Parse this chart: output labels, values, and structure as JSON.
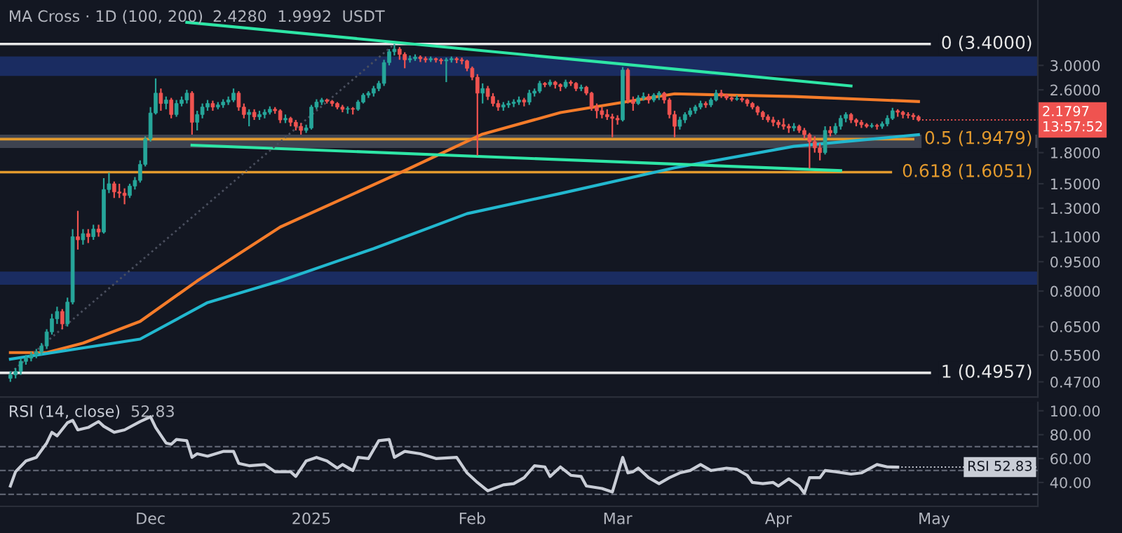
{
  "chart_data": [
    {
      "type": "candlestick",
      "log": true,
      "tick_labels": "y",
      "annotations": [
        "MA Cross · 1D (100, 200)",
        "2.4280",
        "1.9992",
        "USDT",
        {
          "text": "2.1797\n13:57:52",
          "x": "2025-04-28",
          "y": 2.1797
        }
      ],
      "xlim": [
        "2024-11-02",
        "2025-05-21"
      ],
      "ylim": [
        0.43,
        4.4
      ],
      "yticks": [
        {
          "value": 3,
          "label": "3.0000"
        },
        {
          "value": 2.6,
          "label": "2.6000"
        },
        {
          "value": 1.8,
          "label": "1.8000"
        },
        {
          "value": 1.5,
          "label": "1.5000"
        },
        {
          "value": 1.3,
          "label": "1.3000"
        },
        {
          "value": 1.1,
          "label": "1.1000"
        },
        {
          "value": 0.95,
          "label": "0.9500"
        },
        {
          "value": 0.8,
          "label": "0.8000"
        },
        {
          "value": 0.65,
          "label": "0.6500"
        },
        {
          "value": 0.55,
          "label": "0.5500"
        },
        {
          "value": 0.47,
          "label": "0.4700"
        }
      ],
      "bands": [
        {
          "axis": "y",
          "from": 2.82,
          "to": 3.16,
          "color": "#1f3a8c"
        },
        {
          "axis": "y",
          "from": 0.83,
          "to": 0.897,
          "color": "#1f3a8c"
        },
        {
          "axis": "y",
          "from": 1.85,
          "to": 2.0,
          "color": "#5b6170"
        }
      ],
      "ref_lines": [
        {
          "axis": "y",
          "value": 3.4,
          "label": "0 (3.4000)",
          "color": "#e8e8e8"
        },
        {
          "axis": "y",
          "value": 1.9479,
          "label": "0.5 (1.9479)",
          "color": "#e39a2d"
        },
        {
          "axis": "y",
          "value": 1.6051,
          "label": "0.618 (1.6051)",
          "color": "#e39a2d"
        },
        {
          "axis": "y",
          "value": 0.4957,
          "label": "1 (0.4957)",
          "color": "#e8e8e8"
        }
      ],
      "x": [
        "2024-11-04",
        "2024-11-05",
        "2024-11-06",
        "2024-11-07",
        "2024-11-08",
        "2024-11-09",
        "2024-11-10",
        "2024-11-11",
        "2024-11-12",
        "2024-11-13",
        "2024-11-14",
        "2024-11-15",
        "2024-11-16",
        "2024-11-17",
        "2024-11-18",
        "2024-11-19",
        "2024-11-20",
        "2024-11-21",
        "2024-11-22",
        "2024-11-23",
        "2024-11-24",
        "2024-11-25",
        "2024-11-26",
        "2024-11-27",
        "2024-11-28",
        "2024-11-29",
        "2024-11-30",
        "2024-12-01",
        "2024-12-02",
        "2024-12-03",
        "2024-12-04",
        "2024-12-05",
        "2024-12-06",
        "2024-12-07",
        "2024-12-08",
        "2024-12-09",
        "2024-12-10",
        "2024-12-11",
        "2024-12-12",
        "2024-12-13",
        "2024-12-14",
        "2024-12-15",
        "2024-12-16",
        "2024-12-17",
        "2024-12-18",
        "2024-12-19",
        "2024-12-20",
        "2024-12-21",
        "2024-12-22",
        "2024-12-23",
        "2024-12-24",
        "2024-12-25",
        "2024-12-26",
        "2024-12-27",
        "2024-12-28",
        "2024-12-29",
        "2024-12-30",
        "2024-12-31",
        "2025-01-01",
        "2025-01-02",
        "2025-01-03",
        "2025-01-04",
        "2025-01-05",
        "2025-01-06",
        "2025-01-07",
        "2025-01-08",
        "2025-01-09",
        "2025-01-10",
        "2025-01-11",
        "2025-01-12",
        "2025-01-13",
        "2025-01-14",
        "2025-01-15",
        "2025-01-16",
        "2025-01-17",
        "2025-01-18",
        "2025-01-19",
        "2025-01-20",
        "2025-01-21",
        "2025-01-22",
        "2025-01-23",
        "2025-01-24",
        "2025-01-25",
        "2025-01-26",
        "2025-01-27",
        "2025-01-28",
        "2025-01-29",
        "2025-01-30",
        "2025-01-31",
        "2025-02-01",
        "2025-02-02",
        "2025-02-03",
        "2025-02-04",
        "2025-02-05",
        "2025-02-06",
        "2025-02-07",
        "2025-02-08",
        "2025-02-09",
        "2025-02-10",
        "2025-02-11",
        "2025-02-12",
        "2025-02-13",
        "2025-02-14",
        "2025-02-15",
        "2025-02-16",
        "2025-02-17",
        "2025-02-18",
        "2025-02-19",
        "2025-02-20",
        "2025-02-21",
        "2025-02-22",
        "2025-02-23",
        "2025-02-24",
        "2025-02-25",
        "2025-02-26",
        "2025-02-27",
        "2025-02-28",
        "2025-03-01",
        "2025-03-02",
        "2025-03-03",
        "2025-03-04",
        "2025-03-05",
        "2025-03-06",
        "2025-03-07",
        "2025-03-08",
        "2025-03-09",
        "2025-03-10",
        "2025-03-11",
        "2025-03-12",
        "2025-03-13",
        "2025-03-14",
        "2025-03-15",
        "2025-03-16",
        "2025-03-17",
        "2025-03-18",
        "2025-03-19",
        "2025-03-20",
        "2025-03-21",
        "2025-03-22",
        "2025-03-23",
        "2025-03-24",
        "2025-03-25",
        "2025-03-26",
        "2025-03-27",
        "2025-03-28",
        "2025-03-29",
        "2025-03-30",
        "2025-03-31",
        "2025-04-01",
        "2025-04-02",
        "2025-04-03",
        "2025-04-04",
        "2025-04-05",
        "2025-04-06",
        "2025-04-07",
        "2025-04-08",
        "2025-04-09",
        "2025-04-10",
        "2025-04-11",
        "2025-04-12",
        "2025-04-13",
        "2025-04-14",
        "2025-04-15",
        "2025-04-16",
        "2025-04-17",
        "2025-04-18",
        "2025-04-19",
        "2025-04-20",
        "2025-04-21",
        "2025-04-22",
        "2025-04-23",
        "2025-04-24",
        "2025-04-25",
        "2025-04-26",
        "2025-04-27",
        "2025-04-28"
      ],
      "ohlc": [
        [
          0.48,
          0.5,
          0.47,
          0.49
        ],
        [
          0.49,
          0.51,
          0.48,
          0.5
        ],
        [
          0.5,
          0.54,
          0.49,
          0.53
        ],
        [
          0.53,
          0.55,
          0.52,
          0.54
        ],
        [
          0.54,
          0.56,
          0.53,
          0.55
        ],
        [
          0.55,
          0.57,
          0.54,
          0.56
        ],
        [
          0.56,
          0.59,
          0.55,
          0.58
        ],
        [
          0.58,
          0.64,
          0.57,
          0.63
        ],
        [
          0.63,
          0.7,
          0.62,
          0.68
        ],
        [
          0.68,
          0.73,
          0.66,
          0.71
        ],
        [
          0.71,
          0.72,
          0.64,
          0.66
        ],
        [
          0.66,
          0.77,
          0.65,
          0.75
        ],
        [
          0.75,
          1.15,
          0.74,
          1.1
        ],
        [
          1.1,
          1.28,
          1.02,
          1.08
        ],
        [
          1.08,
          1.15,
          1.05,
          1.12
        ],
        [
          1.12,
          1.15,
          1.06,
          1.1
        ],
        [
          1.1,
          1.18,
          1.08,
          1.15
        ],
        [
          1.15,
          1.18,
          1.1,
          1.13
        ],
        [
          1.13,
          1.55,
          1.12,
          1.45
        ],
        [
          1.45,
          1.6,
          1.42,
          1.5
        ],
        [
          1.5,
          1.52,
          1.38,
          1.43
        ],
        [
          1.43,
          1.5,
          1.38,
          1.42
        ],
        [
          1.42,
          1.46,
          1.33,
          1.4
        ],
        [
          1.4,
          1.5,
          1.38,
          1.48
        ],
        [
          1.48,
          1.56,
          1.45,
          1.53
        ],
        [
          1.53,
          1.72,
          1.51,
          1.68
        ],
        [
          1.68,
          1.98,
          1.66,
          1.95
        ],
        [
          1.95,
          2.35,
          1.92,
          2.27
        ],
        [
          2.27,
          2.78,
          2.25,
          2.55
        ],
        [
          2.55,
          2.62,
          2.3,
          2.4
        ],
        [
          2.4,
          2.5,
          2.32,
          2.45
        ],
        [
          2.45,
          2.48,
          2.2,
          2.25
        ],
        [
          2.25,
          2.45,
          2.22,
          2.4
        ],
        [
          2.4,
          2.5,
          2.36,
          2.45
        ],
        [
          2.45,
          2.6,
          2.4,
          2.55
        ],
        [
          2.55,
          2.58,
          2.0,
          2.15
        ],
        [
          2.15,
          2.3,
          2.05,
          2.25
        ],
        [
          2.25,
          2.4,
          2.2,
          2.35
        ],
        [
          2.35,
          2.45,
          2.3,
          2.4
        ],
        [
          2.4,
          2.44,
          2.3,
          2.35
        ],
        [
          2.35,
          2.42,
          2.32,
          2.38
        ],
        [
          2.38,
          2.46,
          2.34,
          2.42
        ],
        [
          2.42,
          2.5,
          2.38,
          2.45
        ],
        [
          2.45,
          2.62,
          2.42,
          2.55
        ],
        [
          2.55,
          2.58,
          2.3,
          2.35
        ],
        [
          2.35,
          2.4,
          2.2,
          2.25
        ],
        [
          2.25,
          2.32,
          2.1,
          2.28
        ],
        [
          2.28,
          2.32,
          2.18,
          2.22
        ],
        [
          2.22,
          2.3,
          2.18,
          2.25
        ],
        [
          2.25,
          2.32,
          2.2,
          2.28
        ],
        [
          2.28,
          2.36,
          2.25,
          2.32
        ],
        [
          2.32,
          2.35,
          2.26,
          2.3
        ],
        [
          2.3,
          2.32,
          2.14,
          2.18
        ],
        [
          2.18,
          2.25,
          2.14,
          2.2
        ],
        [
          2.2,
          2.22,
          2.1,
          2.15
        ],
        [
          2.15,
          2.18,
          2.05,
          2.1
        ],
        [
          2.1,
          2.14,
          2.0,
          2.05
        ],
        [
          2.05,
          2.12,
          2.02,
          2.08
        ],
        [
          2.08,
          2.38,
          2.06,
          2.35
        ],
        [
          2.35,
          2.46,
          2.32,
          2.42
        ],
        [
          2.42,
          2.48,
          2.38,
          2.45
        ],
        [
          2.45,
          2.47,
          2.4,
          2.43
        ],
        [
          2.43,
          2.45,
          2.36,
          2.4
        ],
        [
          2.4,
          2.42,
          2.32,
          2.35
        ],
        [
          2.35,
          2.38,
          2.28,
          2.32
        ],
        [
          2.32,
          2.36,
          2.26,
          2.33
        ],
        [
          2.33,
          2.35,
          2.25,
          2.32
        ],
        [
          2.32,
          2.45,
          2.3,
          2.42
        ],
        [
          2.42,
          2.55,
          2.4,
          2.52
        ],
        [
          2.52,
          2.58,
          2.48,
          2.55
        ],
        [
          2.55,
          2.66,
          2.5,
          2.62
        ],
        [
          2.62,
          2.74,
          2.58,
          2.7
        ],
        [
          2.7,
          3.1,
          2.66,
          3.05
        ],
        [
          3.05,
          3.3,
          3.0,
          3.25
        ],
        [
          3.25,
          3.4,
          3.18,
          3.3
        ],
        [
          3.3,
          3.34,
          3.1,
          3.2
        ],
        [
          3.2,
          3.24,
          2.95,
          3.1
        ],
        [
          3.1,
          3.18,
          3.05,
          3.12
        ],
        [
          3.12,
          3.2,
          3.08,
          3.15
        ],
        [
          3.15,
          3.18,
          3.06,
          3.12
        ],
        [
          3.12,
          3.16,
          3.05,
          3.1
        ],
        [
          3.1,
          3.16,
          3.06,
          3.12
        ],
        [
          3.12,
          3.14,
          3.05,
          3.1
        ],
        [
          3.1,
          3.13,
          3.02,
          3.08
        ],
        [
          3.08,
          3.14,
          2.72,
          3.1
        ],
        [
          3.1,
          3.16,
          3.05,
          3.12
        ],
        [
          3.12,
          3.15,
          3.04,
          3.1
        ],
        [
          3.1,
          3.14,
          3.02,
          3.08
        ],
        [
          3.08,
          3.1,
          2.9,
          2.95
        ],
        [
          2.95,
          2.98,
          2.75,
          2.8
        ],
        [
          2.8,
          2.85,
          1.77,
          2.55
        ],
        [
          2.55,
          2.7,
          2.4,
          2.62
        ],
        [
          2.62,
          2.66,
          2.45,
          2.5
        ],
        [
          2.5,
          2.55,
          2.36,
          2.4
        ],
        [
          2.4,
          2.45,
          2.3,
          2.35
        ],
        [
          2.35,
          2.42,
          2.3,
          2.38
        ],
        [
          2.38,
          2.44,
          2.34,
          2.4
        ],
        [
          2.4,
          2.46,
          2.35,
          2.42
        ],
        [
          2.42,
          2.5,
          2.38,
          2.45
        ],
        [
          2.45,
          2.48,
          2.36,
          2.42
        ],
        [
          2.42,
          2.6,
          2.38,
          2.55
        ],
        [
          2.55,
          2.62,
          2.5,
          2.58
        ],
        [
          2.58,
          2.74,
          2.55,
          2.7
        ],
        [
          2.7,
          2.72,
          2.64,
          2.68
        ],
        [
          2.68,
          2.76,
          2.65,
          2.72
        ],
        [
          2.72,
          2.74,
          2.62,
          2.68
        ],
        [
          2.68,
          2.7,
          2.58,
          2.65
        ],
        [
          2.65,
          2.76,
          2.62,
          2.72
        ],
        [
          2.72,
          2.75,
          2.66,
          2.7
        ],
        [
          2.7,
          2.72,
          2.58,
          2.62
        ],
        [
          2.62,
          2.68,
          2.58,
          2.64
        ],
        [
          2.64,
          2.66,
          2.52,
          2.55
        ],
        [
          2.55,
          2.57,
          2.3,
          2.35
        ],
        [
          2.35,
          2.4,
          2.2,
          2.3
        ],
        [
          2.3,
          2.35,
          2.2,
          2.25
        ],
        [
          2.25,
          2.32,
          2.18,
          2.22
        ],
        [
          2.22,
          2.26,
          1.97,
          2.2
        ],
        [
          2.2,
          2.24,
          2.12,
          2.18
        ],
        [
          2.18,
          2.97,
          2.16,
          2.92
        ],
        [
          2.92,
          2.95,
          2.4,
          2.45
        ],
        [
          2.45,
          2.5,
          2.3,
          2.4
        ],
        [
          2.4,
          2.52,
          2.38,
          2.48
        ],
        [
          2.48,
          2.56,
          2.44,
          2.5
        ],
        [
          2.5,
          2.54,
          2.4,
          2.45
        ],
        [
          2.45,
          2.55,
          2.42,
          2.52
        ],
        [
          2.52,
          2.58,
          2.45,
          2.55
        ],
        [
          2.55,
          2.57,
          2.4,
          2.45
        ],
        [
          2.45,
          2.48,
          2.2,
          2.25
        ],
        [
          2.25,
          2.3,
          1.97,
          2.1
        ],
        [
          2.1,
          2.22,
          2.06,
          2.18
        ],
        [
          2.18,
          2.28,
          2.14,
          2.25
        ],
        [
          2.25,
          2.34,
          2.22,
          2.3
        ],
        [
          2.3,
          2.38,
          2.26,
          2.35
        ],
        [
          2.35,
          2.44,
          2.32,
          2.4
        ],
        [
          2.4,
          2.43,
          2.34,
          2.38
        ],
        [
          2.38,
          2.48,
          2.35,
          2.45
        ],
        [
          2.45,
          2.6,
          2.43,
          2.55
        ],
        [
          2.55,
          2.6,
          2.48,
          2.52
        ],
        [
          2.52,
          2.54,
          2.45,
          2.48
        ],
        [
          2.48,
          2.5,
          2.43,
          2.46
        ],
        [
          2.46,
          2.52,
          2.44,
          2.47
        ],
        [
          2.47,
          2.5,
          2.42,
          2.45
        ],
        [
          2.45,
          2.47,
          2.36,
          2.4
        ],
        [
          2.4,
          2.42,
          2.32,
          2.35
        ],
        [
          2.35,
          2.37,
          2.24,
          2.28
        ],
        [
          2.28,
          2.3,
          2.18,
          2.22
        ],
        [
          2.22,
          2.25,
          2.15,
          2.18
        ],
        [
          2.18,
          2.22,
          2.1,
          2.15
        ],
        [
          2.15,
          2.18,
          2.08,
          2.12
        ],
        [
          2.12,
          2.2,
          2.06,
          2.1
        ],
        [
          2.1,
          2.13,
          2.02,
          2.08
        ],
        [
          2.08,
          2.14,
          2.04,
          2.1
        ],
        [
          2.1,
          2.12,
          2.02,
          2.05
        ],
        [
          2.05,
          2.08,
          1.95,
          2.0
        ],
        [
          2.0,
          2.02,
          1.64,
          1.92
        ],
        [
          1.92,
          1.98,
          1.8,
          1.85
        ],
        [
          1.85,
          1.9,
          1.72,
          1.8
        ],
        [
          1.8,
          2.1,
          1.78,
          2.05
        ],
        [
          2.05,
          2.1,
          1.98,
          2.02
        ],
        [
          2.02,
          2.14,
          2.0,
          2.1
        ],
        [
          2.1,
          2.24,
          2.06,
          2.2
        ],
        [
          2.2,
          2.28,
          2.15,
          2.25
        ],
        [
          2.25,
          2.27,
          2.14,
          2.18
        ],
        [
          2.18,
          2.2,
          2.1,
          2.15
        ],
        [
          2.15,
          2.18,
          2.08,
          2.12
        ],
        [
          2.12,
          2.14,
          2.08,
          2.1
        ],
        [
          2.1,
          2.14,
          2.08,
          2.11
        ],
        [
          2.11,
          2.13,
          2.06,
          2.1
        ],
        [
          2.1,
          2.16,
          2.07,
          2.13
        ],
        [
          2.13,
          2.24,
          2.1,
          2.2
        ],
        [
          2.2,
          2.34,
          2.18,
          2.3
        ],
        [
          2.3,
          2.32,
          2.22,
          2.28
        ],
        [
          2.28,
          2.3,
          2.2,
          2.25
        ],
        [
          2.25,
          2.28,
          2.2,
          2.24
        ],
        [
          2.24,
          2.27,
          2.18,
          2.22
        ],
        [
          2.22,
          2.24,
          2.16,
          2.1797
        ]
      ],
      "series": [
        {
          "type": "line",
          "color": "#f57c2a",
          "x": [
            "2024-11-04",
            "2024-11-11",
            "2024-11-18",
            "2024-11-29",
            "2024-12-10",
            "2024-12-26",
            "2025-01-19",
            "2025-02-03",
            "2025-02-18",
            "2025-03-12",
            "2025-04-04",
            "2025-04-28"
          ],
          "values": [
            0.558,
            0.558,
            0.59,
            0.67,
            0.849,
            1.164,
            1.62,
            2.006,
            2.276,
            2.54,
            2.5,
            2.428
          ]
        },
        {
          "type": "line",
          "color": "#22b8cf",
          "x": [
            "2024-11-04",
            "2024-11-29",
            "2024-12-12",
            "2024-12-26",
            "2025-01-13",
            "2025-01-31",
            "2025-02-18",
            "2025-03-12",
            "2025-04-04",
            "2025-04-28"
          ],
          "values": [
            0.537,
            0.604,
            0.748,
            0.849,
            1.026,
            1.259,
            1.417,
            1.647,
            1.868,
            1.9992
          ]
        },
        {
          "type": "line",
          "color": "#2ee6a6",
          "x": [
            "2024-12-08",
            "2025-04-15"
          ],
          "values": [
            3.86,
            2.66
          ]
        },
        {
          "type": "line",
          "color": "#2ee6a6",
          "x": [
            "2024-12-09",
            "2025-04-13"
          ],
          "values": [
            1.88,
            1.62
          ]
        },
        {
          "type": "line",
          "color": "#4a4f5e",
          "line_style": "dotted",
          "x": [
            "2024-11-04",
            "2025-01-17"
          ],
          "values": [
            0.4957,
            3.4
          ]
        }
      ]
    },
    {
      "type": "line",
      "annotations": [
        "52.83",
        {
          "text": "RSI 52.83",
          "x": "2025-04-24",
          "y": 52.83
        }
      ],
      "xlim": [
        "2024-11-02",
        "2025-05-21"
      ],
      "xticks": [
        {
          "value": "2024-12-01",
          "label": "Dec"
        },
        {
          "value": "2025-01-01",
          "label": "2025"
        },
        {
          "value": "2025-02-01",
          "label": "Feb"
        },
        {
          "value": "2025-03-01",
          "label": "Mar"
        },
        {
          "value": "2025-04-01",
          "label": "Apr"
        },
        {
          "value": "2025-05-01",
          "label": "May"
        }
      ],
      "ylim": [
        20,
        107
      ],
      "yticks": [
        {
          "value": 100,
          "label": "100.00"
        },
        {
          "value": 80,
          "label": "80.00"
        },
        {
          "value": 60,
          "label": "60.00"
        },
        {
          "value": 40,
          "label": "40.00"
        }
      ],
      "ref_lines": [
        {
          "axis": "y",
          "value": 70,
          "color": "#5d6270",
          "line_style": "dashed"
        },
        {
          "axis": "y",
          "value": 50,
          "color": "#5d6270",
          "line_style": "dashed"
        },
        {
          "axis": "y",
          "value": 30,
          "color": "#5d6270",
          "line_style": "dashed"
        }
      ],
      "series": [
        {
          "name": "RSI (14, close)",
          "color": "#c9cdd6",
          "x": [
            "2024-11-04",
            "2024-11-05",
            "2024-11-07",
            "2024-11-09",
            "2024-11-11",
            "2024-11-12",
            "2024-11-13",
            "2024-11-15",
            "2024-11-16",
            "2024-11-17",
            "2024-11-19",
            "2024-11-21",
            "2024-11-22",
            "2024-11-24",
            "2024-11-26",
            "2024-11-29",
            "2024-12-01",
            "2024-12-02",
            "2024-12-04",
            "2024-12-05",
            "2024-12-06",
            "2024-12-08",
            "2024-12-09",
            "2024-12-10",
            "2024-12-12",
            "2024-12-15",
            "2024-12-17",
            "2024-12-18",
            "2024-12-20",
            "2024-12-23",
            "2024-12-25",
            "2024-12-28",
            "2024-12-29",
            "2024-12-31",
            "2025-01-02",
            "2025-01-04",
            "2025-01-06",
            "2025-01-07",
            "2025-01-09",
            "2025-01-10",
            "2025-01-12",
            "2025-01-14",
            "2025-01-16",
            "2025-01-17",
            "2025-01-19",
            "2025-01-22",
            "2025-01-25",
            "2025-01-29",
            "2025-01-31",
            "2025-02-02",
            "2025-02-04",
            "2025-02-07",
            "2025-02-09",
            "2025-02-11",
            "2025-02-13",
            "2025-02-15",
            "2025-02-16",
            "2025-02-18",
            "2025-02-20",
            "2025-02-22",
            "2025-02-23",
            "2025-02-26",
            "2025-02-28",
            "2025-03-02",
            "2025-03-03",
            "2025-03-04",
            "2025-03-05",
            "2025-03-07",
            "2025-03-09",
            "2025-03-11",
            "2025-03-13",
            "2025-03-15",
            "2025-03-17",
            "2025-03-19",
            "2025-03-22",
            "2025-03-24",
            "2025-03-26",
            "2025-03-27",
            "2025-03-29",
            "2025-03-31",
            "2025-04-01",
            "2025-04-03",
            "2025-04-05",
            "2025-04-06",
            "2025-04-07",
            "2025-04-09",
            "2025-04-10",
            "2025-04-12",
            "2025-04-15",
            "2025-04-17",
            "2025-04-20",
            "2025-04-22",
            "2025-04-24"
          ],
          "values": [
            37,
            49,
            58,
            61,
            73,
            82,
            79,
            90,
            92,
            84,
            86,
            91,
            87,
            82,
            84,
            91,
            95,
            86,
            73,
            72,
            76,
            75,
            61,
            64,
            62,
            66,
            66,
            56,
            54,
            55,
            49,
            49,
            45,
            58,
            61,
            58,
            52,
            55,
            50,
            61,
            60,
            75,
            76,
            61,
            66,
            64,
            60,
            61,
            48,
            40,
            33,
            38,
            39,
            44,
            54,
            53,
            45,
            53,
            46,
            45,
            37,
            35,
            32,
            61,
            48,
            49,
            52,
            44,
            39,
            44,
            48,
            50,
            55,
            50,
            52,
            51,
            46,
            40,
            39,
            40,
            37,
            43,
            37,
            31,
            44,
            44,
            50,
            49,
            47,
            48,
            55,
            53,
            52.83
          ]
        }
      ]
    }
  ]
}
